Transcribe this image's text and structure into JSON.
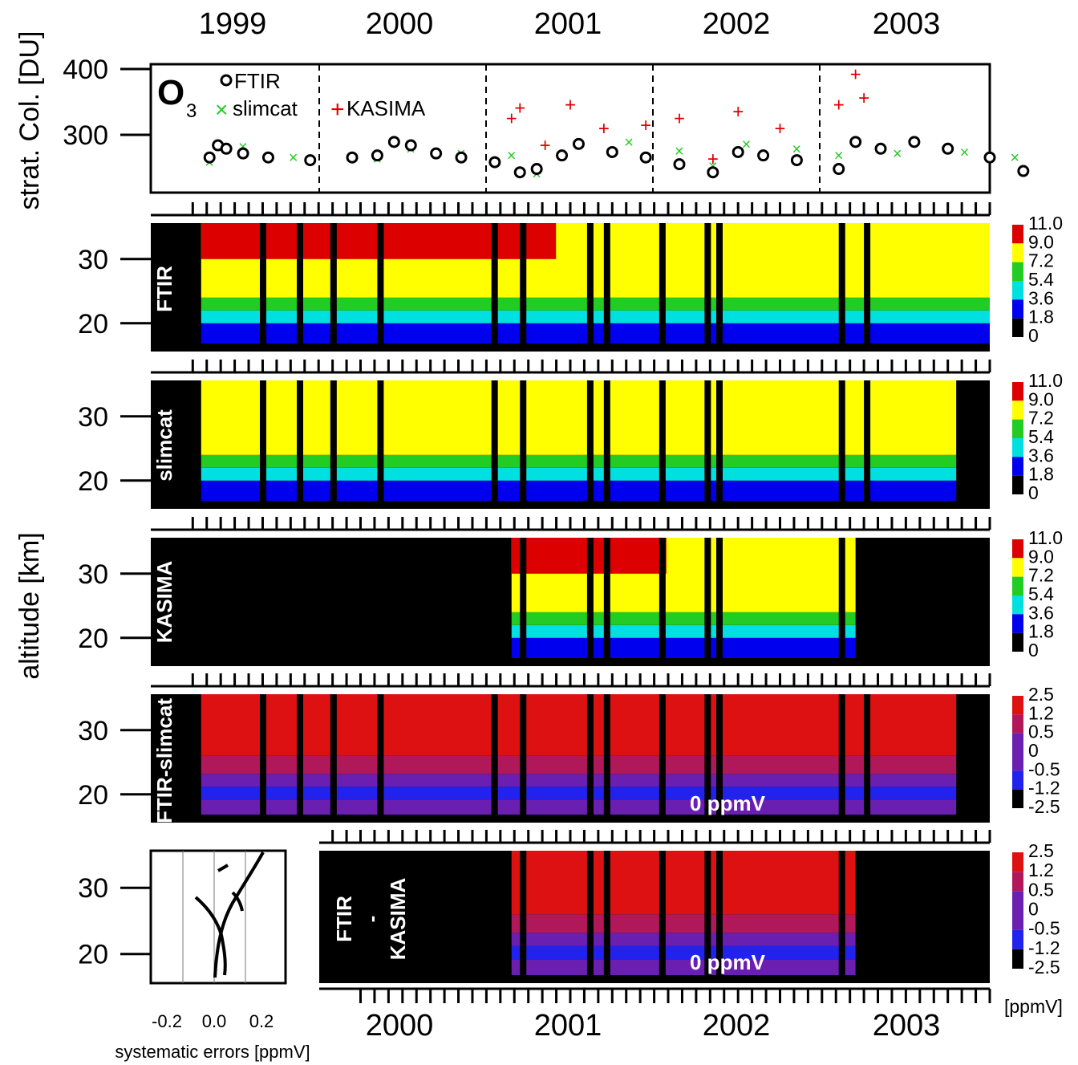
{
  "chart_data": [
    {
      "type": "scatter",
      "panel": "o3-stratospheric-column",
      "ylabel": "strat. Col. [DU]",
      "y_ticks": [
        "400",
        "300"
      ],
      "ylim": [
        210,
        400
      ],
      "x_years": [
        "1999",
        "2000",
        "2001",
        "2002",
        "2003"
      ],
      "species": "O",
      "species_sub": "3",
      "series": [
        {
          "name": "FTIR",
          "marker": "open-circle",
          "color": "#000000"
        },
        {
          "name": "slimcat",
          "marker": "x",
          "color": "#22cc22"
        },
        {
          "name": "KASIMA",
          "marker": "+",
          "color": "#dd0000"
        }
      ],
      "points": {
        "FTIR": [
          [
            1999.1,
            262
          ],
          [
            1999.15,
            280
          ],
          [
            1999.2,
            275
          ],
          [
            1999.3,
            268
          ],
          [
            1999.45,
            262
          ],
          [
            1999.7,
            258
          ],
          [
            1999.95,
            262
          ],
          [
            2000.1,
            265
          ],
          [
            2000.2,
            285
          ],
          [
            2000.3,
            280
          ],
          [
            2000.45,
            268
          ],
          [
            2000.6,
            262
          ],
          [
            2000.8,
            255
          ],
          [
            2000.95,
            240
          ],
          [
            2001.05,
            245
          ],
          [
            2001.2,
            265
          ],
          [
            2001.3,
            282
          ],
          [
            2001.5,
            270
          ],
          [
            2001.7,
            262
          ],
          [
            2001.9,
            252
          ],
          [
            2002.1,
            240
          ],
          [
            2002.25,
            270
          ],
          [
            2002.4,
            265
          ],
          [
            2002.6,
            258
          ],
          [
            2002.85,
            245
          ],
          [
            2002.95,
            285
          ],
          [
            2003.1,
            275
          ],
          [
            2003.3,
            285
          ],
          [
            2003.5,
            275
          ],
          [
            2003.75,
            262
          ],
          [
            2003.95,
            242
          ]
        ],
        "slimcat": [
          [
            1999.1,
            255
          ],
          [
            1999.3,
            278
          ],
          [
            1999.6,
            262
          ],
          [
            2000.1,
            260
          ],
          [
            2000.3,
            275
          ],
          [
            2000.6,
            268
          ],
          [
            2000.9,
            265
          ],
          [
            2001.05,
            238
          ],
          [
            2001.3,
            285
          ],
          [
            2001.6,
            285
          ],
          [
            2001.9,
            272
          ],
          [
            2002.1,
            250
          ],
          [
            2002.3,
            282
          ],
          [
            2002.6,
            275
          ],
          [
            2002.85,
            265
          ],
          [
            2003.2,
            268
          ],
          [
            2003.6,
            270
          ],
          [
            2003.9,
            262
          ]
        ],
        "KASIMA": [
          [
            2000.9,
            320
          ],
          [
            2000.95,
            335
          ],
          [
            2001.1,
            280
          ],
          [
            2001.25,
            340
          ],
          [
            2001.45,
            305
          ],
          [
            2001.7,
            310
          ],
          [
            2001.9,
            320
          ],
          [
            2002.1,
            260
          ],
          [
            2002.25,
            330
          ],
          [
            2002.5,
            305
          ],
          [
            2002.85,
            340
          ],
          [
            2002.95,
            385
          ],
          [
            2003.0,
            350
          ]
        ]
      }
    },
    {
      "type": "heatmap",
      "panel": "FTIR",
      "label": "FTIR",
      "ylabel": "altitude [km]",
      "y_ticks": [
        "30",
        "20"
      ],
      "colorbar": [
        "11.0",
        "9.0",
        "7.2",
        "5.4",
        "3.6",
        "1.8",
        "0"
      ],
      "colors": [
        "#dd0000",
        "#ffff00",
        "#22cc22",
        "#00e0e0",
        "#0000ee",
        "#000000"
      ]
    },
    {
      "type": "heatmap",
      "panel": "slimcat",
      "label": "slimcat",
      "y_ticks": [
        "30",
        "20"
      ],
      "colorbar": [
        "11.0",
        "9.0",
        "7.2",
        "5.4",
        "3.6",
        "1.8",
        "0"
      ]
    },
    {
      "type": "heatmap",
      "panel": "KASIMA",
      "label": "KASIMA",
      "y_ticks": [
        "30",
        "20"
      ],
      "colorbar": [
        "11.0",
        "9.0",
        "7.2",
        "5.4",
        "3.6",
        "1.8",
        "0"
      ]
    },
    {
      "type": "heatmap",
      "panel": "FTIR-slimcat",
      "label": "FTIR-slimcat",
      "y_ticks": [
        "30",
        "20"
      ],
      "colorbar": [
        "2.5",
        "1.2",
        "0.5",
        "0",
        "-0.5",
        "-1.2",
        "-2.5"
      ],
      "annotation": "0 ppmV"
    },
    {
      "type": "heatmap",
      "panel": "FTIR-KASIMA",
      "label_top": "FTIR",
      "label_mid": "-",
      "label_bottom": "KASIMA",
      "y_ticks": [
        "30",
        "20"
      ],
      "colorbar": [
        "2.5",
        "1.2",
        "0.5",
        "0",
        "-0.5",
        "-1.2",
        "-2.5"
      ],
      "annotation": "0 ppmV",
      "colorbar_unit": "[ppmV]",
      "x_years": [
        "2000",
        "2001",
        "2002",
        "2003"
      ]
    },
    {
      "type": "line",
      "panel": "systematic-errors",
      "xlabel": "systematic errors [ppmV]",
      "x_ticks": [
        "-0.2",
        "0.0",
        "0.2"
      ],
      "xlim": [
        -0.3,
        0.3
      ],
      "ylim": [
        15,
        37
      ]
    }
  ]
}
